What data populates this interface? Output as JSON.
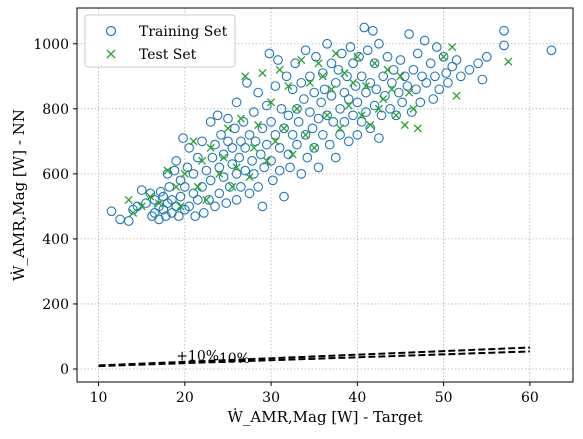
{
  "chart_data": {
    "type": "scatter",
    "title": "",
    "xlabel": "Ẇ_AMR,Mag [W] - Target",
    "ylabel": "Ẇ_AMR,Mag [W] - NN",
    "xlim": [
      7.5,
      65
    ],
    "ylim": [
      -40,
      1110
    ],
    "xticks": [
      10,
      20,
      30,
      40,
      50,
      60
    ],
    "yticks": [
      0,
      200,
      400,
      600,
      800,
      1000
    ],
    "grid": true,
    "legend": "top-left",
    "colors": {
      "training": "#1f77b4",
      "test": "#2ca02c",
      "lines": "#000000"
    },
    "series": [
      {
        "name": "Training Set",
        "marker": "circle",
        "points": [
          [
            11.5,
            485
          ],
          [
            12.5,
            460
          ],
          [
            13.5,
            455
          ],
          [
            14,
            490
          ],
          [
            14.5,
            500
          ],
          [
            15,
            550
          ],
          [
            15.5,
            510
          ],
          [
            16,
            540
          ],
          [
            16.2,
            470
          ],
          [
            16.5,
            480
          ],
          [
            16.5,
            520
          ],
          [
            17,
            500
          ],
          [
            17,
            460
          ],
          [
            17.2,
            545
          ],
          [
            17.5,
            490
          ],
          [
            17.5,
            530
          ],
          [
            17.8,
            470
          ],
          [
            18,
            600
          ],
          [
            18,
            510
          ],
          [
            18.2,
            560
          ],
          [
            18.5,
            480
          ],
          [
            18.5,
            520
          ],
          [
            18.8,
            610
          ],
          [
            19,
            500
          ],
          [
            19,
            640
          ],
          [
            19.3,
            470
          ],
          [
            19.5,
            580
          ],
          [
            19.5,
            530
          ],
          [
            19.8,
            710
          ],
          [
            20,
            490
          ],
          [
            20,
            560
          ],
          [
            20.3,
            620
          ],
          [
            20.5,
            680
          ],
          [
            20.5,
            500
          ],
          [
            21,
            540
          ],
          [
            21,
            600
          ],
          [
            21.2,
            470
          ],
          [
            21.5,
            650
          ],
          [
            21.5,
            520
          ],
          [
            22,
            560
          ],
          [
            22,
            700
          ],
          [
            22.2,
            480
          ],
          [
            22.5,
            610
          ],
          [
            22.8,
            520
          ],
          [
            23,
            760
          ],
          [
            23,
            580
          ],
          [
            23.2,
            650
          ],
          [
            23.5,
            500
          ],
          [
            23.5,
            690
          ],
          [
            23.8,
            780
          ],
          [
            24,
            540
          ],
          [
            24,
            620
          ],
          [
            24.2,
            720
          ],
          [
            24.5,
            590
          ],
          [
            24.5,
            660
          ],
          [
            24.8,
            510
          ],
          [
            25,
            700
          ],
          [
            25,
            770
          ],
          [
            25.2,
            560
          ],
          [
            25.5,
            630
          ],
          [
            25.5,
            680
          ],
          [
            25.8,
            740
          ],
          [
            26,
            520
          ],
          [
            26,
            600
          ],
          [
            26,
            820
          ],
          [
            26.3,
            650
          ],
          [
            26.5,
            700
          ],
          [
            26.5,
            560
          ],
          [
            26.8,
            760
          ],
          [
            27,
            610
          ],
          [
            27,
            680
          ],
          [
            27.2,
            880
          ],
          [
            27.5,
            720
          ],
          [
            27.5,
            540
          ],
          [
            27.8,
            640
          ],
          [
            28,
            790
          ],
          [
            28,
            600
          ],
          [
            28.2,
            700
          ],
          [
            28.5,
            560
          ],
          [
            28.5,
            850
          ],
          [
            28.8,
            660
          ],
          [
            29,
            740
          ],
          [
            29,
            500
          ],
          [
            29.2,
            620
          ],
          [
            29.5,
            810
          ],
          [
            29.5,
            690
          ],
          [
            29.8,
            970
          ],
          [
            30,
            760
          ],
          [
            30,
            640
          ],
          [
            30.2,
            580
          ],
          [
            30.5,
            720
          ],
          [
            30.5,
            870
          ],
          [
            30.8,
            950
          ],
          [
            31,
            680
          ],
          [
            31,
            610
          ],
          [
            31.2,
            800
          ],
          [
            31.5,
            740
          ],
          [
            31.5,
            530
          ],
          [
            31.8,
            900
          ],
          [
            32,
            660
          ],
          [
            32,
            780
          ],
          [
            32.2,
            620
          ],
          [
            32.5,
            860
          ],
          [
            32.5,
            720
          ],
          [
            32.8,
            940
          ],
          [
            33,
            690
          ],
          [
            33,
            800
          ],
          [
            33.2,
            760
          ],
          [
            33.5,
            600
          ],
          [
            33.5,
            880
          ],
          [
            33.8,
            830
          ],
          [
            34,
            720
          ],
          [
            34,
            980
          ],
          [
            34.2,
            650
          ],
          [
            34.5,
            790
          ],
          [
            34.5,
            900
          ],
          [
            34.8,
            740
          ],
          [
            35,
            680
          ],
          [
            35,
            850
          ],
          [
            35.2,
            960
          ],
          [
            35.5,
            770
          ],
          [
            35.5,
            620
          ],
          [
            35.8,
            820
          ],
          [
            36,
            720
          ],
          [
            36,
            910
          ],
          [
            36.2,
            860
          ],
          [
            36.5,
            780
          ],
          [
            36.5,
            1000
          ],
          [
            36.8,
            690
          ],
          [
            37,
            840
          ],
          [
            37,
            940
          ],
          [
            37.2,
            760
          ],
          [
            37.5,
            650
          ],
          [
            37.5,
            880
          ],
          [
            37.8,
            920
          ],
          [
            38,
            800
          ],
          [
            38,
            720
          ],
          [
            38.2,
            970
          ],
          [
            38.5,
            850
          ],
          [
            38.5,
            760
          ],
          [
            38.8,
            900
          ],
          [
            39,
            700
          ],
          [
            39,
            830
          ],
          [
            39.2,
            990
          ],
          [
            39.5,
            780
          ],
          [
            39.5,
            940
          ],
          [
            39.8,
            870
          ],
          [
            40,
            720
          ],
          [
            40,
            820
          ],
          [
            40.2,
            960
          ],
          [
            40.5,
            760
          ],
          [
            40.5,
            900
          ],
          [
            40.8,
            1050
          ],
          [
            41,
            850
          ],
          [
            41,
            790
          ],
          [
            41.2,
            980
          ],
          [
            41.5,
            880
          ],
          [
            41.5,
            740
          ],
          [
            41.8,
            1040
          ],
          [
            42,
            810
          ],
          [
            42,
            940
          ],
          [
            42.2,
            860
          ],
          [
            42.5,
            710
          ],
          [
            42.5,
            1000
          ],
          [
            42.8,
            780
          ],
          [
            43,
            900
          ],
          [
            43.2,
            840
          ],
          [
            43.5,
            960
          ],
          [
            43.8,
            800
          ],
          [
            44,
            880
          ],
          [
            44.2,
            920
          ],
          [
            44.5,
            780
          ],
          [
            44.8,
            850
          ],
          [
            45,
            950
          ],
          [
            45.2,
            820
          ],
          [
            45.5,
            900
          ],
          [
            45.8,
            870
          ],
          [
            46,
            1030
          ],
          [
            46.3,
            790
          ],
          [
            46.5,
            920
          ],
          [
            46.8,
            860
          ],
          [
            47,
            970
          ],
          [
            47.3,
            820
          ],
          [
            47.5,
            900
          ],
          [
            47.8,
            1010
          ],
          [
            48,
            880
          ],
          [
            48.5,
            940
          ],
          [
            48.8,
            830
          ],
          [
            49,
            900
          ],
          [
            49.2,
            990
          ],
          [
            49.5,
            860
          ],
          [
            50,
            960
          ],
          [
            50.3,
            910
          ],
          [
            50.5,
            880
          ],
          [
            51,
            930
          ],
          [
            51.5,
            950
          ],
          [
            52,
            900
          ],
          [
            53,
            920
          ],
          [
            54,
            940
          ],
          [
            54.5,
            890
          ],
          [
            55,
            960
          ],
          [
            57,
            1040
          ],
          [
            57,
            995
          ],
          [
            62.5,
            980
          ]
        ]
      },
      {
        "name": "Test Set",
        "marker": "x",
        "points": [
          [
            13.5,
            520
          ],
          [
            14,
            480
          ],
          [
            15,
            500
          ],
          [
            16,
            530
          ],
          [
            17,
            510
          ],
          [
            18,
            610
          ],
          [
            19,
            560
          ],
          [
            19.5,
            500
          ],
          [
            20,
            600
          ],
          [
            21,
            700
          ],
          [
            21.5,
            560
          ],
          [
            22,
            640
          ],
          [
            22.5,
            520
          ],
          [
            23,
            680
          ],
          [
            24,
            600
          ],
          [
            24.5,
            650
          ],
          [
            25,
            740
          ],
          [
            25.5,
            560
          ],
          [
            26,
            620
          ],
          [
            26.5,
            770
          ],
          [
            27,
            900
          ],
          [
            27.5,
            590
          ],
          [
            28,
            680
          ],
          [
            28.5,
            750
          ],
          [
            29,
            910
          ],
          [
            29.5,
            640
          ],
          [
            30,
            820
          ],
          [
            30.5,
            700
          ],
          [
            31,
            920
          ],
          [
            31.5,
            740
          ],
          [
            32,
            870
          ],
          [
            32.5,
            660
          ],
          [
            33,
            800
          ],
          [
            33.5,
            950
          ],
          [
            34,
            720
          ],
          [
            34.5,
            880
          ],
          [
            35,
            680
          ],
          [
            35.5,
            940
          ],
          [
            36,
            900
          ],
          [
            36.5,
            780
          ],
          [
            37,
            860
          ],
          [
            37.5,
            970
          ],
          [
            38,
            740
          ],
          [
            38.5,
            910
          ],
          [
            39,
            810
          ],
          [
            39.5,
            880
          ],
          [
            40,
            960
          ],
          [
            40.5,
            780
          ],
          [
            41,
            870
          ],
          [
            41.5,
            750
          ],
          [
            42,
            940
          ],
          [
            42.5,
            800
          ],
          [
            43,
            830
          ],
          [
            43.5,
            920
          ],
          [
            44,
            860
          ],
          [
            44.5,
            780
          ],
          [
            45,
            900
          ],
          [
            45.5,
            750
          ],
          [
            46,
            850
          ],
          [
            46.5,
            800
          ],
          [
            47,
            740
          ],
          [
            50,
            960
          ],
          [
            51,
            990
          ],
          [
            51.5,
            840
          ],
          [
            57.5,
            945
          ]
        ]
      }
    ],
    "lines": [
      {
        "label": "+10%",
        "style": "dashed",
        "x": [
          10,
          60
        ],
        "y": [
          11,
          66
        ]
      },
      {
        "label": "-10%",
        "style": "dashed",
        "x": [
          10,
          60
        ],
        "y": [
          9,
          54
        ]
      }
    ]
  }
}
